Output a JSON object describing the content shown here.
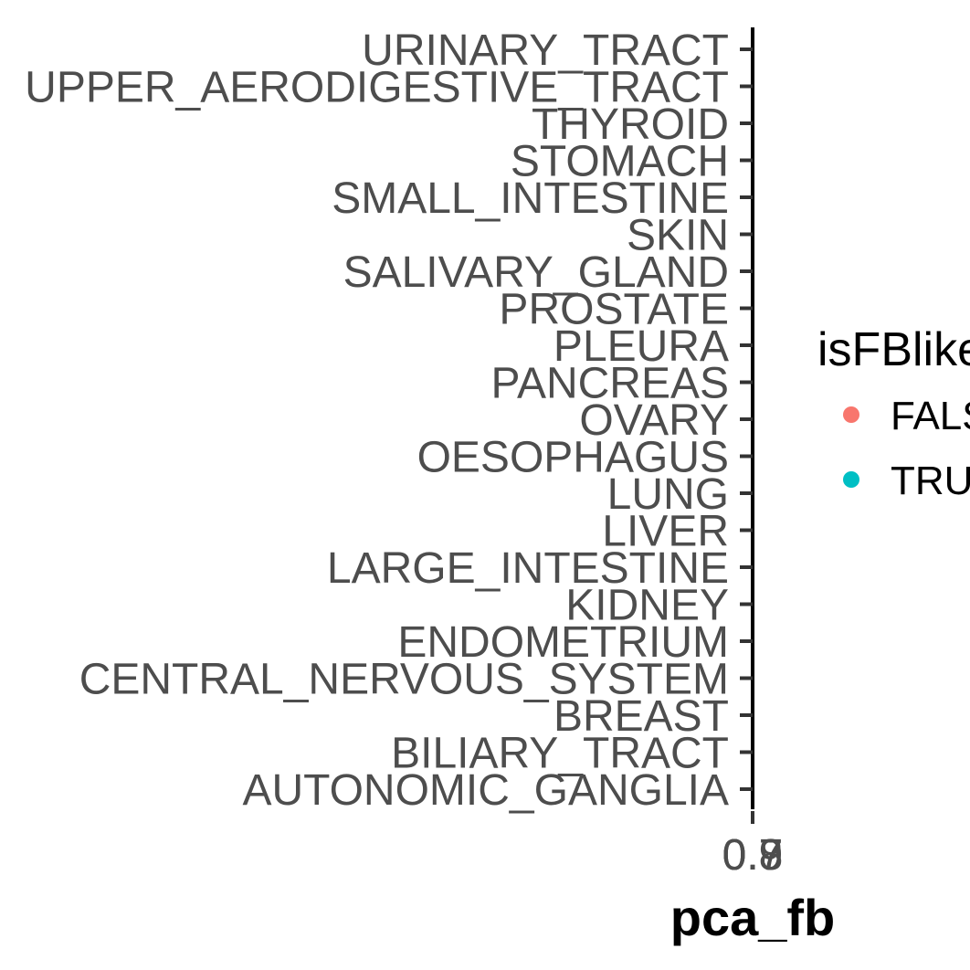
{
  "chart_data": {
    "type": "scatter",
    "xlabel": "pca_fb",
    "ylabel": "",
    "x_tick_labels": [
      "0.7",
      "0.8",
      "0.9"
    ],
    "categories": [
      "URINARY_TRACT",
      "UPPER_AERODIGESTIVE_TRACT",
      "THYROID",
      "STOMACH",
      "SMALL_INTESTINE",
      "SKIN",
      "SALIVARY_GLAND",
      "PROSTATE",
      "PLEURA",
      "PANCREAS",
      "OVARY",
      "OESOPHAGUS",
      "LUNG",
      "LIVER",
      "LARGE_INTESTINE",
      "KIDNEY",
      "ENDOMETRIUM",
      "CENTRAL_NERVOUS_SYSTEM",
      "BREAST",
      "BILIARY_TRACT",
      "AUTONOMIC_GANGLIA"
    ],
    "series": [
      {
        "name": "FALSE",
        "color": "#F8766D"
      },
      {
        "name": "TRUE",
        "color": "#00BFC4"
      }
    ],
    "legend": {
      "title": "isFBlike",
      "position": "right"
    },
    "grid": false
  }
}
